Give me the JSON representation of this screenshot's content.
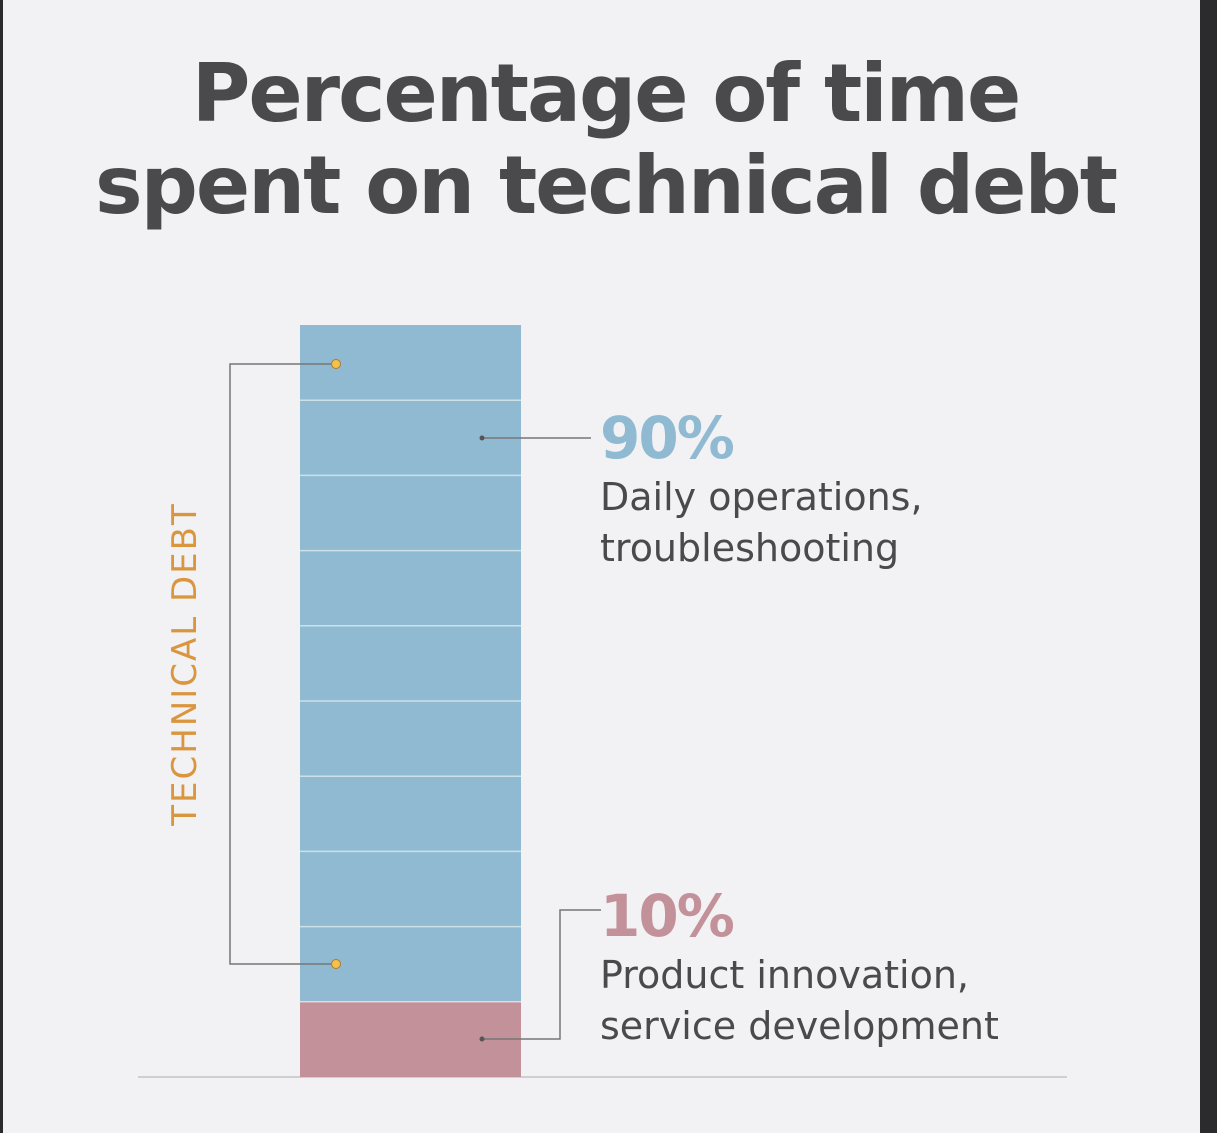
{
  "chart_data": {
    "type": "bar",
    "title_lines": [
      "Percentage of time",
      "spent on technical debt"
    ],
    "bracket_label": "TECHNICAL DEBT",
    "segments": [
      {
        "value": 10,
        "value_label": "10%",
        "description": [
          "Product innovation,",
          "service development"
        ],
        "color": "#c39199"
      },
      {
        "value": 90,
        "value_label": "90%",
        "description": [
          "Daily operations,",
          "troubleshooting"
        ],
        "color": "#8fbad1"
      }
    ],
    "total": 100,
    "grid_step": 10,
    "colors": {
      "title": "#4a4a4d",
      "bracket": "#d9963f",
      "text": "#4a4a4d",
      "leader": "#777777",
      "baseline": "#cfcfd3"
    }
  }
}
